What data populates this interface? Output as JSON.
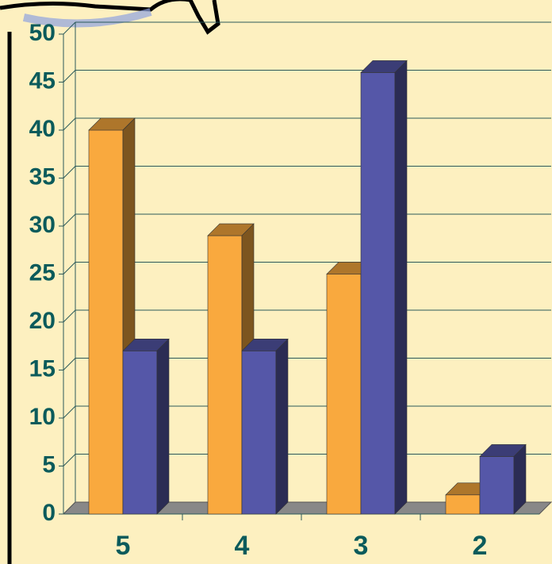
{
  "chart_data": {
    "type": "bar3d",
    "categories": [
      "5",
      "4",
      "3",
      "2"
    ],
    "series": [
      {
        "color": "#f9a93e",
        "values": [
          40,
          29,
          25,
          2
        ]
      },
      {
        "color": "#5557a8",
        "values": [
          17,
          17,
          46,
          6
        ]
      }
    ],
    "ylim": [
      0,
      50
    ],
    "yticks": [
      0,
      5,
      10,
      15,
      20,
      25,
      30,
      35,
      40,
      45,
      50
    ],
    "grid": true
  }
}
